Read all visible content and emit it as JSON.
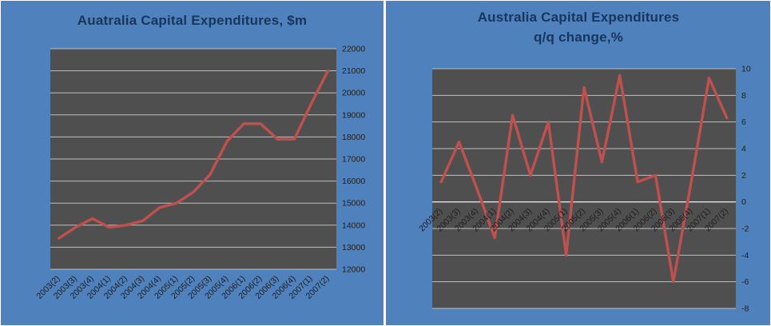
{
  "colors": {
    "page_background": "#4F81BD",
    "divider": "#FFFFFF",
    "plot_background": "#4F4F4F",
    "gridline": "#BFBFBF",
    "zero_line": "#E0E0E0",
    "series_line": "#C0504D",
    "title_text": "#17365D",
    "tick_text": "#1F1F1F"
  },
  "chart_data": [
    {
      "type": "line",
      "title": "Auatralia Capital Expenditures, $m",
      "title_lines": [
        "Auatralia Capital Expenditures, $m"
      ],
      "xlabel": "",
      "ylabel": "",
      "legend": "none",
      "grid": true,
      "y_axis_side": "right",
      "x_label_position": "bottom",
      "ylim": [
        12000,
        22000
      ],
      "ytick_step": 1000,
      "yticks": [
        12000,
        13000,
        14000,
        15000,
        16000,
        17000,
        18000,
        19000,
        20000,
        21000,
        22000
      ],
      "categories": [
        "2003(2)",
        "2003(3)",
        "2003(4)",
        "2004(1)",
        "2004(2)",
        "2004(3)",
        "2004(4)",
        "2005(1)",
        "2005(2)",
        "2005(3)",
        "2005(4)",
        "2006(1)",
        "2006(2)",
        "2006(3)",
        "2006(4)",
        "2007(1)",
        "2007(2)"
      ],
      "values": [
        13400,
        13900,
        14300,
        13900,
        14000,
        14200,
        14800,
        15000,
        15500,
        16300,
        17800,
        18600,
        18600,
        17900,
        17900,
        19500,
        21000
      ]
    },
    {
      "type": "line",
      "title": "Australia Capital Expenditures q/q change,%",
      "title_lines": [
        "Australia Capital Expenditures",
        "q/q change,%"
      ],
      "xlabel": "",
      "ylabel": "",
      "legend": "none",
      "grid": true,
      "y_axis_side": "right",
      "x_label_position": "zero-axis",
      "ylim": [
        -8,
        10
      ],
      "ytick_step": 2,
      "yticks": [
        -8,
        -6,
        -4,
        -2,
        0,
        2,
        4,
        6,
        8,
        10
      ],
      "categories": [
        "2003(2)",
        "2003(3)",
        "2003(4)",
        "2004(1)",
        "2004(2)",
        "2004(3)",
        "2004(4)",
        "2005(1)",
        "2005(2)",
        "2005(3)",
        "2005(4)",
        "2006(1)",
        "2006(2)",
        "2006(3)",
        "2006(4)",
        "2007(1)",
        "2007(2)"
      ],
      "values": [
        1.5,
        4.5,
        1.0,
        -2.7,
        6.5,
        2.0,
        6.0,
        -4.0,
        8.6,
        3.0,
        9.5,
        1.5,
        2.0,
        -6.0,
        1.5,
        9.3,
        6.3
      ]
    }
  ]
}
